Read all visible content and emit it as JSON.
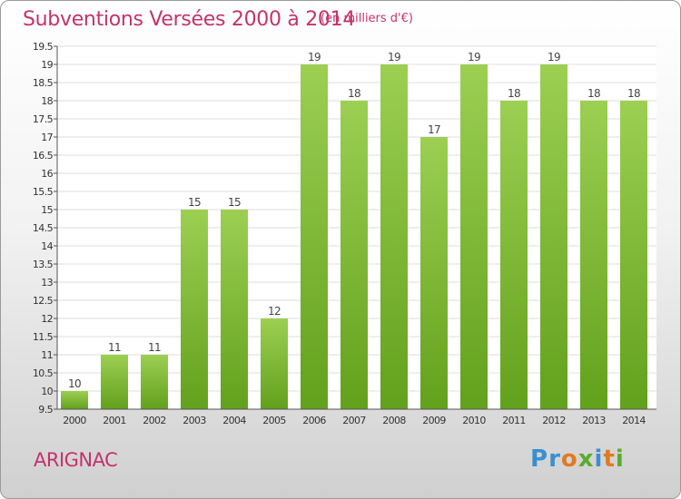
{
  "header": {
    "title": "Subventions Versées 2000 à 2014",
    "subtitle": "(en milliers d'€)"
  },
  "footer": {
    "commune": "ARIGNAC",
    "logo_text": "Proxiti"
  },
  "colors": {
    "title": "#c4336b",
    "bar_top": "#9ccf52",
    "bar_bottom": "#62a11c",
    "grid": "#dddddd",
    "axis": "#555555"
  },
  "chart_data": {
    "type": "bar",
    "title": "Subventions Versées 2000 à 2014",
    "xlabel": "",
    "ylabel": "",
    "ylim": [
      9.5,
      19.5
    ],
    "yticks": [
      9.5,
      10,
      10.5,
      11,
      11.5,
      12,
      12.5,
      13,
      13.5,
      14,
      14.5,
      15,
      15.5,
      16,
      16.5,
      17,
      17.5,
      18,
      18.5,
      19,
      19.5
    ],
    "grid": true,
    "categories": [
      "2000",
      "2001",
      "2002",
      "2003",
      "2004",
      "2005",
      "2006",
      "2007",
      "2008",
      "2009",
      "2010",
      "2011",
      "2012",
      "2013",
      "2014"
    ],
    "values": [
      10,
      11,
      11,
      15,
      15,
      12,
      19,
      18,
      19,
      17,
      19,
      18,
      19,
      18,
      18
    ]
  }
}
